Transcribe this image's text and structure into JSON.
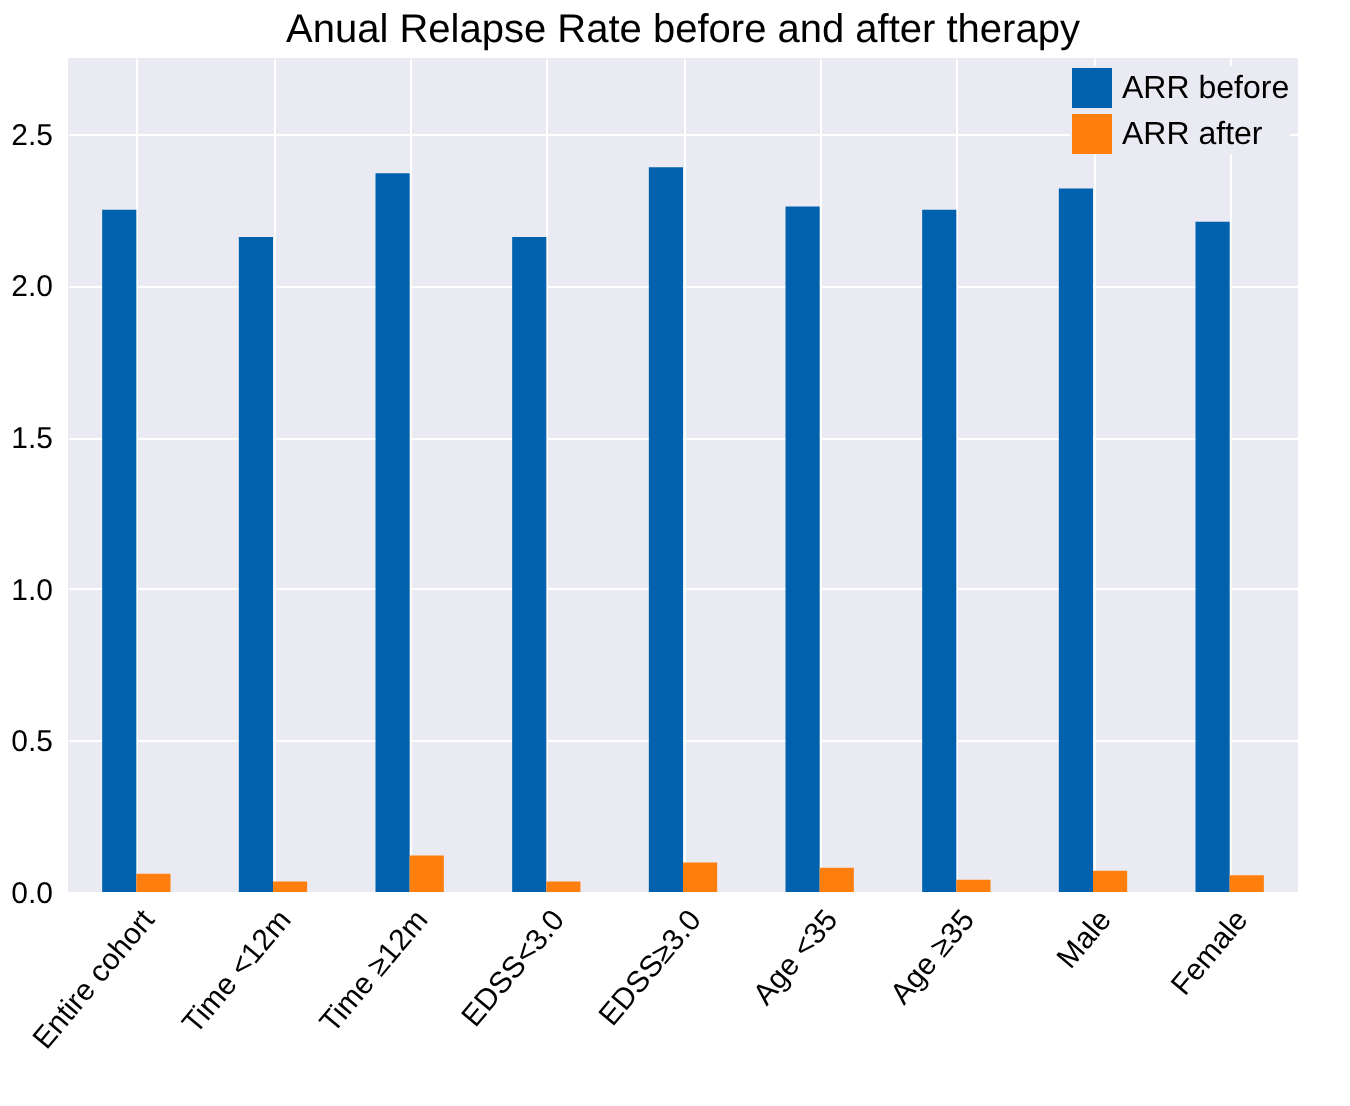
{
  "chart_data": {
    "type": "bar",
    "title": "Anual Relapse Rate before and after therapy",
    "categories": [
      "Entire cohort",
      "Time <12m",
      "Time ≥12m",
      "EDSS<3.0",
      "EDSS≥3.0",
      "Age <35",
      "Age ≥35",
      "Male",
      "Female"
    ],
    "series": [
      {
        "name": "ARR before",
        "color": "#0062ae",
        "values": [
          2.25,
          2.16,
          2.37,
          2.16,
          2.39,
          2.26,
          2.25,
          2.32,
          2.21
        ]
      },
      {
        "name": "ARR after",
        "color": "#ff7f0e",
        "values": [
          0.06,
          0.035,
          0.12,
          0.035,
          0.097,
          0.08,
          0.04,
          0.07,
          0.055
        ]
      }
    ],
    "ylim": [
      0,
      2.75
    ],
    "yticks": [
      {
        "value": 0,
        "label": "0.0"
      },
      {
        "value": 0.5,
        "label": "0.5"
      },
      {
        "value": 1,
        "label": "1.0"
      },
      {
        "value": 1.5,
        "label": "1.5"
      },
      {
        "value": 2,
        "label": "2.0"
      },
      {
        "value": 2.5,
        "label": "2.5"
      }
    ],
    "grid": true,
    "legend": "top right"
  }
}
